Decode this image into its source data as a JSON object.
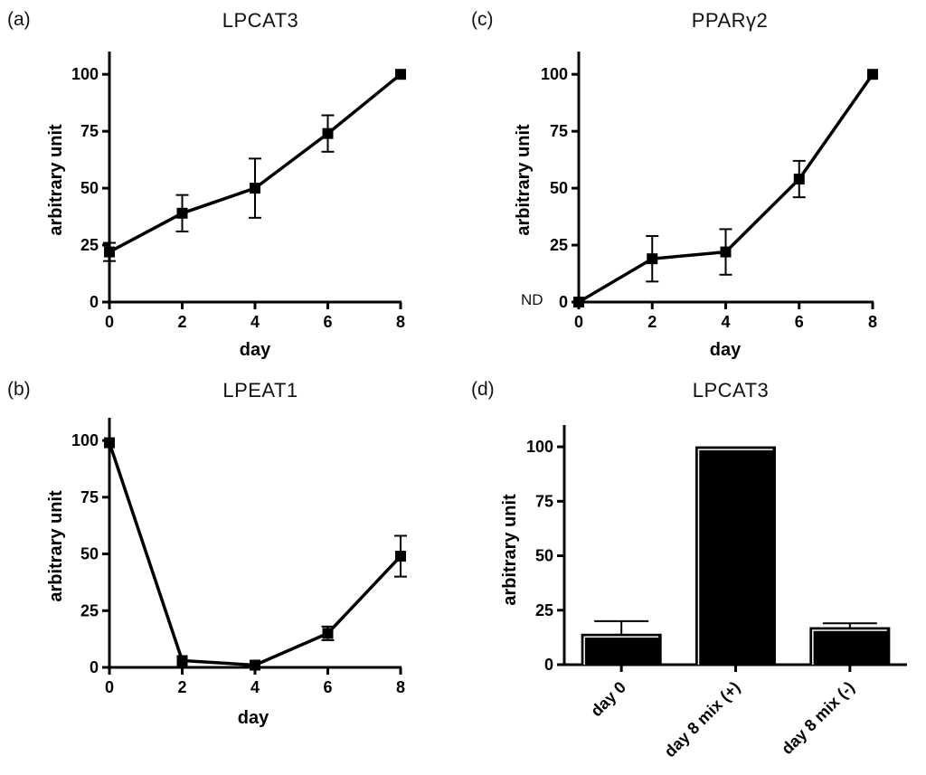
{
  "chart_data": [
    {
      "panel": "(a)",
      "type": "line",
      "title": "LPCAT3",
      "xlabel": "day",
      "ylabel": "arbitrary unit",
      "x": [
        0,
        2,
        4,
        6,
        8
      ],
      "y": [
        22,
        39,
        50,
        74,
        100
      ],
      "yerr": [
        4,
        8,
        13,
        8,
        0
      ],
      "xticks": [
        "0",
        "2",
        "4",
        "6",
        "8"
      ],
      "yticks": [
        "0",
        "25",
        "50",
        "75",
        "100"
      ],
      "xlim": [
        0,
        8
      ],
      "ylim": [
        0,
        110
      ]
    },
    {
      "panel": "(b)",
      "type": "line",
      "title": "LPEAT1",
      "xlabel": "day",
      "ylabel": "arbitrary unit",
      "x": [
        0,
        2,
        4,
        6,
        8
      ],
      "y": [
        99,
        3,
        1,
        15,
        49
      ],
      "yerr": [
        0,
        0,
        0,
        3,
        9
      ],
      "xticks": [
        "0",
        "2",
        "4",
        "6",
        "8"
      ],
      "yticks": [
        "0",
        "25",
        "50",
        "75",
        "100"
      ],
      "xlim": [
        0,
        8
      ],
      "ylim": [
        0,
        110
      ]
    },
    {
      "panel": "(c)",
      "type": "line",
      "title": "PPARγ2",
      "xlabel": "day",
      "ylabel": "arbitrary unit",
      "annotation": "ND",
      "x": [
        0,
        2,
        4,
        6,
        8
      ],
      "y": [
        0,
        19,
        22,
        54,
        100
      ],
      "yerr": [
        0,
        10,
        10,
        8,
        0
      ],
      "xticks": [
        "0",
        "2",
        "4",
        "6",
        "8"
      ],
      "yticks": [
        "0",
        "25",
        "50",
        "75",
        "100"
      ],
      "xlim": [
        0,
        8
      ],
      "ylim": [
        0,
        110
      ]
    },
    {
      "panel": "(d)",
      "type": "bar",
      "title": "LPCAT3",
      "xlabel": "",
      "ylabel": "arbitrary unit",
      "categories": [
        "day 0",
        "day 8 mix (+)",
        "day 8 mix (-)"
      ],
      "values": [
        14,
        100,
        17
      ],
      "yerr": [
        6,
        0,
        2
      ],
      "yticks": [
        "0",
        "25",
        "50",
        "75",
        "100"
      ],
      "ylim": [
        0,
        110
      ]
    }
  ]
}
